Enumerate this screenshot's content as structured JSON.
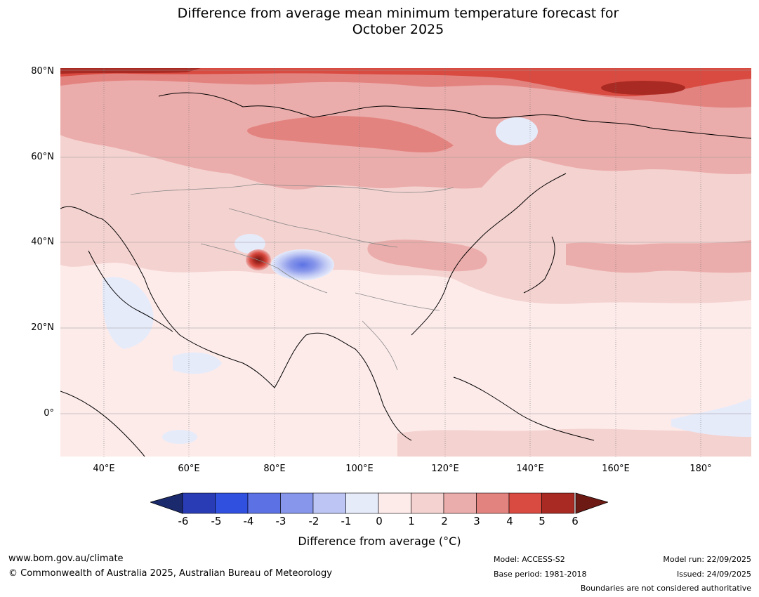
{
  "title": {
    "line1": "Difference from average mean minimum temperature forecast for",
    "line2": "October 2025"
  },
  "map": {
    "lat_labels": [
      "80°N",
      "60°N",
      "40°N",
      "20°N",
      "0°"
    ],
    "lon_labels": [
      "40°E",
      "60°E",
      "80°E",
      "100°E",
      "120°E",
      "140°E",
      "160°E",
      "180°"
    ]
  },
  "colorbar": {
    "ticks": [
      "-6",
      "-5",
      "-4",
      "-3",
      "-2",
      "-1",
      "0",
      "1",
      "2",
      "3",
      "4",
      "5",
      "6"
    ],
    "colors": [
      "#1a2a6c",
      "#2a3cb5",
      "#3050e0",
      "#5c72e4",
      "#8796ea",
      "#bcc5f3",
      "#e6ebfa",
      "#fdebea",
      "#f4d2d0",
      "#ebadab",
      "#e38380",
      "#d94a40",
      "#a92a22",
      "#6e1a14"
    ],
    "label": "Difference from average (°C)"
  },
  "footer": {
    "website": "www.bom.gov.au/climate",
    "copyright": "© Commonwealth of Australia 2025, Australian Bureau of Meteorology",
    "model": "Model: ACCESS-S2",
    "base_period": "Base period: 1981-2018",
    "model_run": "Model run: 22/09/2025",
    "issued": "Issued: 24/09/2025",
    "disclaimer": "Boundaries are not considered authoritative"
  }
}
